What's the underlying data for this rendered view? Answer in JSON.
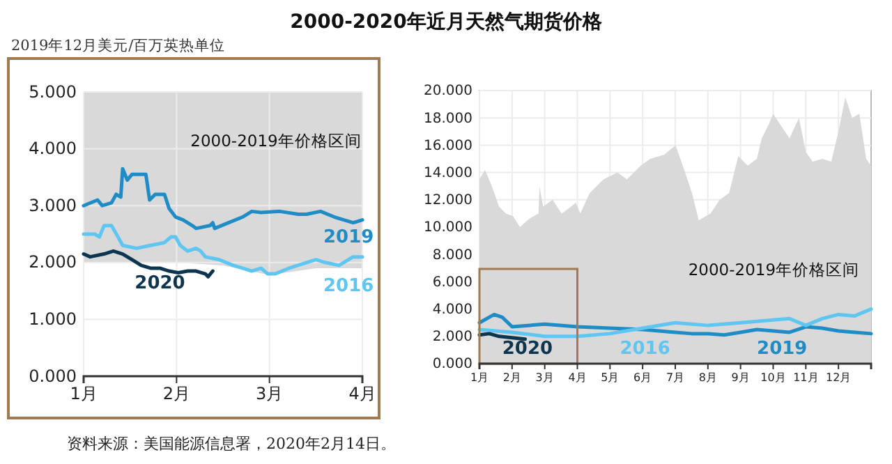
{
  "chart_data": [
    {
      "type": "line",
      "title": "2000-2020年近月天然气期货价格",
      "ylabel": "2019年12月美元/百万英热单位",
      "annotations": [
        "资料来源：美国能源信息署，2020年2月14日。"
      ],
      "xlim": [
        1,
        4
      ],
      "xticks": [
        {
          "value": 1,
          "label": "1月"
        },
        {
          "value": 2,
          "label": "2月"
        },
        {
          "value": 3,
          "label": "3月"
        },
        {
          "value": 4,
          "label": "4月"
        }
      ],
      "ylim": [
        0,
        5
      ],
      "yticks": [
        {
          "value": 0,
          "label": "0.000"
        },
        {
          "value": 1,
          "label": "1.000"
        },
        {
          "value": 2,
          "label": "2.000"
        },
        {
          "value": 3,
          "label": "3.000"
        },
        {
          "value": 4,
          "label": "4.000"
        },
        {
          "value": 5,
          "label": "5.000"
        }
      ],
      "grid": true,
      "series": [
        {
          "name": "2000-2019年价格区间",
          "x": [
            1,
            2,
            2.5,
            3,
            3.5,
            4
          ],
          "values": [
            null,
            null,
            null,
            null,
            null,
            null
          ],
          "lower": [
            2.0,
            2.0,
            1.95,
            1.78,
            1.9,
            1.9
          ],
          "upper": [
            5,
            5,
            5,
            5,
            5,
            5
          ]
        },
        {
          "name": "2019",
          "color": "#1f8cc6",
          "x": [
            1,
            1.15,
            1.2,
            1.3,
            1.35,
            1.4,
            1.42,
            1.47,
            1.52,
            1.67,
            1.71,
            1.77,
            1.87,
            1.92,
            1.99,
            2.07,
            2.17,
            2.21,
            2.36,
            2.39,
            2.41,
            2.56,
            2.71,
            2.81,
            2.91,
            3.11,
            3.31,
            3.4,
            3.55,
            3.7,
            3.9,
            4
          ],
          "values": [
            3.0,
            3.1,
            3.0,
            3.05,
            3.2,
            3.15,
            3.65,
            3.45,
            3.55,
            3.55,
            3.1,
            3.2,
            3.2,
            2.95,
            2.8,
            2.75,
            2.65,
            2.6,
            2.65,
            2.7,
            2.6,
            2.7,
            2.8,
            2.9,
            2.88,
            2.9,
            2.85,
            2.85,
            2.9,
            2.8,
            2.7,
            2.75
          ]
        },
        {
          "name": "2016",
          "color": "#5ec6f0",
          "x": [
            1,
            1.12,
            1.17,
            1.22,
            1.3,
            1.37,
            1.42,
            1.57,
            1.72,
            1.87,
            1.94,
            1.99,
            2.04,
            2.12,
            2.21,
            2.26,
            2.31,
            2.46,
            2.61,
            2.71,
            2.81,
            2.91,
            2.98,
            3.06,
            3.21,
            3.4,
            3.5,
            3.6,
            3.75,
            3.9,
            4
          ],
          "values": [
            2.5,
            2.5,
            2.45,
            2.65,
            2.65,
            2.45,
            2.3,
            2.25,
            2.3,
            2.35,
            2.45,
            2.45,
            2.3,
            2.2,
            2.25,
            2.2,
            2.1,
            2.05,
            1.95,
            1.9,
            1.85,
            1.9,
            1.8,
            1.8,
            1.9,
            2.0,
            2.05,
            2.0,
            1.95,
            2.1,
            2.1
          ]
        },
        {
          "name": "2020",
          "color": "#0e3550",
          "x": [
            1,
            1.07,
            1.22,
            1.32,
            1.42,
            1.52,
            1.62,
            1.72,
            1.82,
            1.92,
            2.02,
            2.12,
            2.21,
            2.31,
            2.34,
            2.39
          ],
          "values": [
            2.15,
            2.1,
            2.15,
            2.2,
            2.15,
            2.05,
            1.95,
            1.9,
            1.9,
            1.85,
            1.82,
            1.85,
            1.85,
            1.8,
            1.75,
            1.85
          ]
        }
      ]
    },
    {
      "type": "line",
      "xlim": [
        1,
        13
      ],
      "xticks": [
        {
          "value": 1,
          "label": "1月"
        },
        {
          "value": 2,
          "label": "2月"
        },
        {
          "value": 3,
          "label": "3月"
        },
        {
          "value": 4,
          "label": "4月"
        },
        {
          "value": 5,
          "label": "5月"
        },
        {
          "value": 6,
          "label": "6月"
        },
        {
          "value": 7,
          "label": "7月"
        },
        {
          "value": 8,
          "label": "8月"
        },
        {
          "value": 9,
          "label": "9月"
        },
        {
          "value": 10,
          "label": "10月"
        },
        {
          "value": 11,
          "label": "11月"
        },
        {
          "value": 12,
          "label": "12月"
        }
      ],
      "ylim": [
        0,
        20
      ],
      "yticks": [
        {
          "value": 0,
          "label": "0.000"
        },
        {
          "value": 2,
          "label": "2.000"
        },
        {
          "value": 4,
          "label": "4.000"
        },
        {
          "value": 6,
          "label": "6.000"
        },
        {
          "value": 8,
          "label": "8.000"
        },
        {
          "value": 10,
          "label": "10.000"
        },
        {
          "value": 12,
          "label": "12.000"
        },
        {
          "value": 14,
          "label": "14.000"
        },
        {
          "value": 16,
          "label": "16.000"
        },
        {
          "value": 18,
          "label": "18.000"
        },
        {
          "value": 20,
          "label": "20.000"
        }
      ],
      "grid": true,
      "series": [
        {
          "type": "area",
          "name": "2000-2019年价格区间",
          "color": "#d9d9d9",
          "x": [
            1,
            1.17,
            1.38,
            1.6,
            1.81,
            2.03,
            2.24,
            2.52,
            2.81,
            2.84,
            2.95,
            3.24,
            3.52,
            3.81,
            3.95,
            4.09,
            4.38,
            4.8,
            5.23,
            5.52,
            5.94,
            6.23,
            6.66,
            7.01,
            7.23,
            7.51,
            7.72,
            8.08,
            8.36,
            8.65,
            8.93,
            9.22,
            9.5,
            9.65,
            9.86,
            10.0,
            10.22,
            10.5,
            10.79,
            11.0,
            11.21,
            11.5,
            11.78,
            12.0,
            12.21,
            12.42,
            12.64,
            12.85,
            13
          ],
          "values": [
            13.5,
            14.2,
            13.0,
            11.5,
            11.0,
            10.8,
            10.0,
            10.6,
            11.0,
            13.0,
            11.5,
            12.0,
            11.0,
            11.5,
            11.8,
            11.0,
            12.5,
            13.5,
            14.0,
            13.5,
            14.5,
            15.0,
            15.3,
            16.0,
            14.5,
            12.5,
            10.5,
            11.0,
            12.0,
            12.5,
            15.2,
            14.5,
            15.0,
            16.5,
            17.5,
            18.3,
            17.5,
            16.5,
            18.0,
            15.5,
            14.8,
            15.0,
            14.8,
            17.0,
            19.5,
            18.0,
            18.3,
            15.0,
            14.5
          ]
        },
        {
          "name": "2019",
          "color": "#1f8cc6",
          "x": [
            1,
            1.45,
            1.7,
            2,
            3,
            4,
            5,
            6,
            7,
            7.5,
            8,
            8.5,
            9,
            9.5,
            10,
            10.5,
            11,
            11.5,
            12,
            12.5,
            13
          ],
          "values": [
            3.0,
            3.6,
            3.4,
            2.7,
            2.9,
            2.7,
            2.6,
            2.5,
            2.3,
            2.2,
            2.2,
            2.1,
            2.3,
            2.5,
            2.4,
            2.3,
            2.7,
            2.6,
            2.4,
            2.3,
            2.2
          ]
        },
        {
          "name": "2016",
          "color": "#5ec6f0",
          "x": [
            1,
            2,
            3,
            4,
            5,
            6,
            7,
            8,
            9,
            10,
            10.5,
            11,
            11.5,
            12,
            12.5,
            13
          ],
          "values": [
            2.5,
            2.3,
            2.0,
            2.0,
            2.2,
            2.6,
            3.0,
            2.8,
            3.0,
            3.2,
            3.3,
            2.8,
            3.3,
            3.6,
            3.5,
            4.0
          ]
        },
        {
          "name": "2020",
          "color": "#0e3550",
          "x": [
            1,
            1.3,
            1.6,
            2.0,
            2.4
          ],
          "values": [
            2.1,
            2.2,
            2.0,
            1.9,
            1.8
          ]
        }
      ]
    }
  ]
}
